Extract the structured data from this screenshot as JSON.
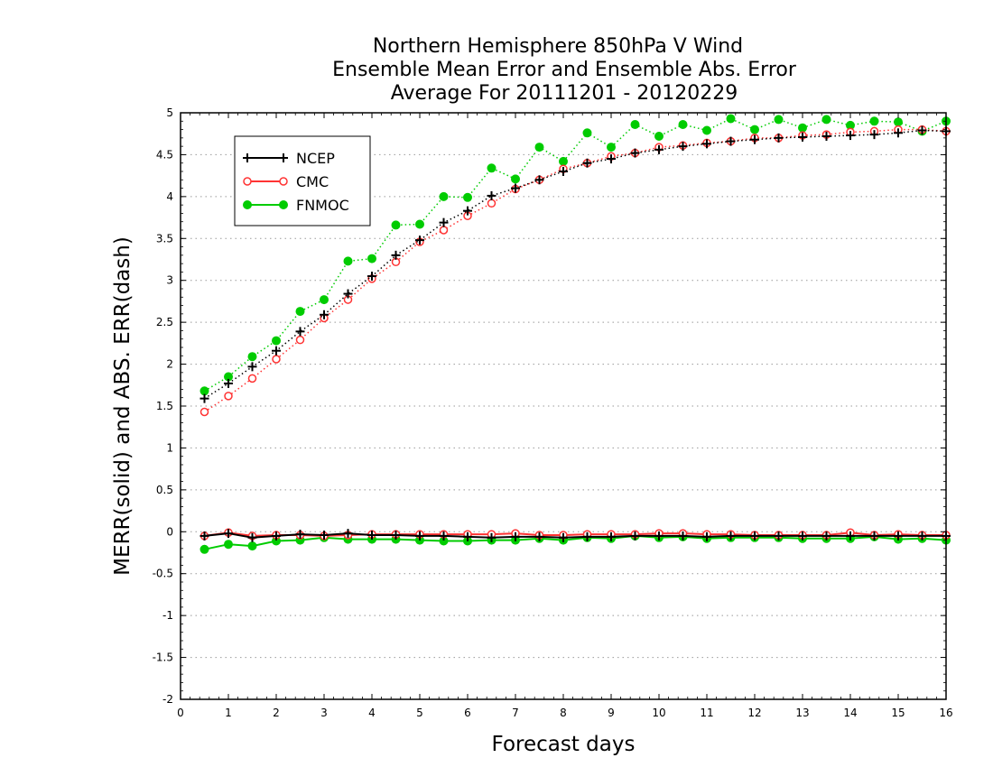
{
  "chart_data": {
    "type": "line",
    "title_lines": [
      "Northern Hemisphere 850hPa V Wind",
      "Ensemble Mean Error and Ensemble Abs. Error",
      "Average For 20111201 - 20120229"
    ],
    "xlabel": "Forecast days",
    "ylabel": "MERR(solid) and ABS. ERR(dash)",
    "xlim": [
      0,
      16
    ],
    "ylim": [
      -2,
      5
    ],
    "x_ticks": [
      0,
      1,
      2,
      3,
      4,
      5,
      6,
      7,
      8,
      9,
      10,
      11,
      12,
      13,
      14,
      15,
      16
    ],
    "y_ticks": [
      -2,
      -1.5,
      -1,
      -0.5,
      0,
      0.5,
      1,
      1.5,
      2,
      2.5,
      3,
      3.5,
      4,
      4.5,
      5
    ],
    "y_tick_labels": [
      "-2",
      "-1.5",
      "-1",
      "-0.5",
      "0",
      "0.5",
      "1",
      "1.5",
      "2",
      "2.5",
      "3",
      "3.5",
      "4",
      "4.5",
      "5"
    ],
    "grid": "horizontal dotted",
    "legend_position": "top-left",
    "x": [
      0.5,
      1,
      1.5,
      2,
      2.5,
      3,
      3.5,
      4,
      4.5,
      5,
      5.5,
      6,
      6.5,
      7,
      7.5,
      8,
      8.5,
      9,
      9.5,
      10,
      10.5,
      11,
      11.5,
      12,
      12.5,
      13,
      13.5,
      14,
      14.5,
      15,
      15.5,
      16
    ],
    "series": [
      {
        "name": "NCEP",
        "color": "#000000",
        "marker": "plus",
        "abs_error": [
          1.59,
          1.77,
          1.97,
          2.16,
          2.39,
          2.59,
          2.84,
          3.05,
          3.3,
          3.48,
          3.69,
          3.83,
          4.01,
          4.1,
          4.2,
          4.3,
          4.4,
          4.45,
          4.52,
          4.56,
          4.6,
          4.63,
          4.66,
          4.68,
          4.7,
          4.71,
          4.72,
          4.73,
          4.74,
          4.76,
          4.79,
          4.78
        ],
        "mean_error": [
          -0.05,
          -0.02,
          -0.07,
          -0.05,
          -0.03,
          -0.04,
          -0.02,
          -0.04,
          -0.04,
          -0.05,
          -0.05,
          -0.06,
          -0.07,
          -0.06,
          -0.06,
          -0.07,
          -0.06,
          -0.06,
          -0.05,
          -0.05,
          -0.05,
          -0.06,
          -0.05,
          -0.05,
          -0.05,
          -0.05,
          -0.05,
          -0.05,
          -0.05,
          -0.05,
          -0.05,
          -0.05
        ]
      },
      {
        "name": "CMC",
        "color": "#ff3333",
        "marker": "open-circle",
        "abs_error": [
          1.43,
          1.62,
          1.83,
          2.06,
          2.29,
          2.55,
          2.77,
          3.02,
          3.22,
          3.46,
          3.6,
          3.77,
          3.92,
          4.09,
          4.2,
          4.33,
          4.4,
          4.48,
          4.52,
          4.59,
          4.61,
          4.64,
          4.66,
          4.7,
          4.7,
          4.73,
          4.74,
          4.77,
          4.78,
          4.8,
          4.8,
          4.78
        ],
        "mean_error": [
          -0.05,
          -0.01,
          -0.05,
          -0.04,
          -0.04,
          -0.05,
          -0.04,
          -0.03,
          -0.03,
          -0.03,
          -0.03,
          -0.03,
          -0.03,
          -0.02,
          -0.04,
          -0.04,
          -0.03,
          -0.03,
          -0.03,
          -0.02,
          -0.02,
          -0.03,
          -0.03,
          -0.04,
          -0.04,
          -0.04,
          -0.04,
          -0.01,
          -0.04,
          -0.03,
          -0.04,
          -0.04
        ]
      },
      {
        "name": "FNMOC",
        "color": "#00cc00",
        "marker": "filled-circle",
        "abs_error": [
          1.68,
          1.85,
          2.09,
          2.28,
          2.63,
          2.77,
          3.23,
          3.26,
          3.66,
          3.67,
          4.0,
          3.99,
          4.34,
          4.21,
          4.59,
          4.42,
          4.76,
          4.59,
          4.86,
          4.72,
          4.86,
          4.79,
          4.93,
          4.8,
          4.92,
          4.82,
          4.92,
          4.85,
          4.9,
          4.89,
          4.78,
          4.9
        ],
        "mean_error": [
          -0.21,
          -0.15,
          -0.17,
          -0.11,
          -0.1,
          -0.07,
          -0.09,
          -0.09,
          -0.09,
          -0.1,
          -0.11,
          -0.11,
          -0.1,
          -0.1,
          -0.08,
          -0.1,
          -0.07,
          -0.08,
          -0.05,
          -0.07,
          -0.06,
          -0.08,
          -0.07,
          -0.07,
          -0.07,
          -0.08,
          -0.08,
          -0.08,
          -0.06,
          -0.09,
          -0.08,
          -0.1
        ]
      }
    ]
  }
}
